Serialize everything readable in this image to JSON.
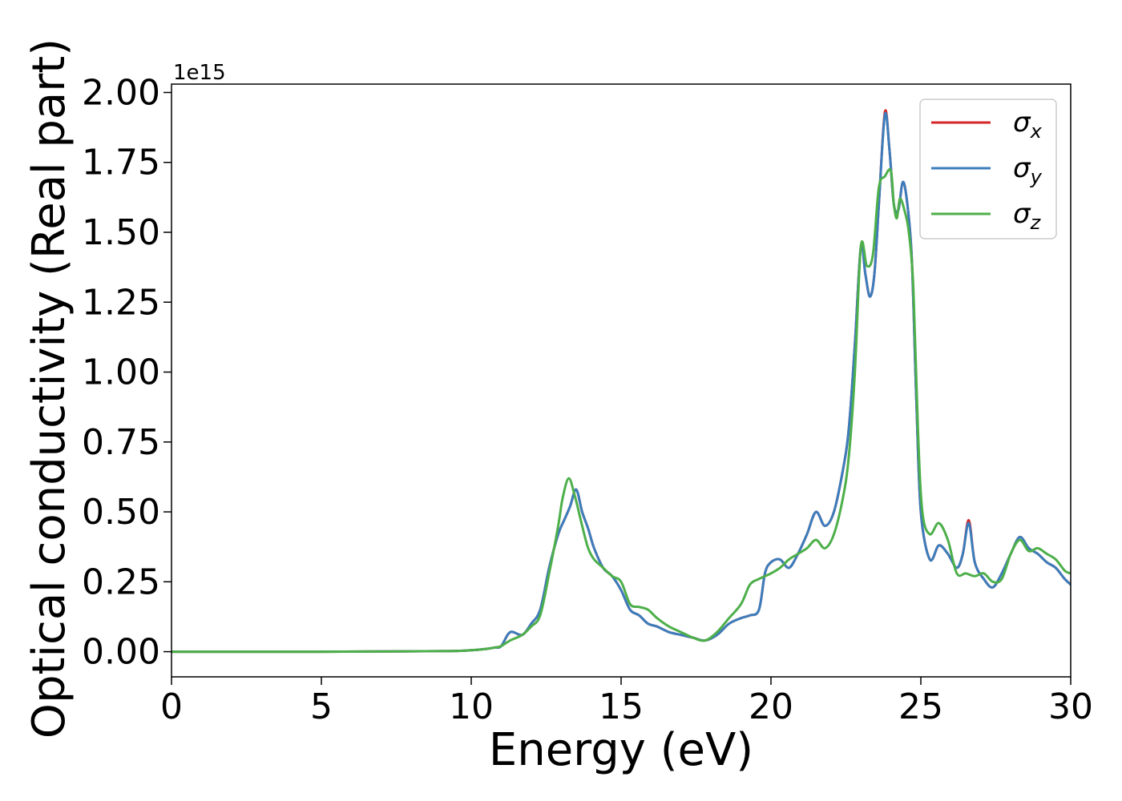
{
  "chart_data": {
    "type": "line",
    "xlabel": "Energy (eV)",
    "ylabel": "Optical conductivity (Real part)",
    "y_offset_label": "1e15",
    "xlim": [
      0,
      30
    ],
    "ylim": [
      -0.09,
      2.03
    ],
    "y_scale_factor": 1000000000000000.0,
    "grid": false,
    "legend_position": "top-right",
    "x_ticks": [
      "0",
      "5",
      "10",
      "15",
      "20",
      "25",
      "30"
    ],
    "y_ticks": [
      "0.00",
      "0.25",
      "0.50",
      "0.75",
      "1.00",
      "1.25",
      "1.50",
      "1.75",
      "2.00"
    ],
    "series": [
      {
        "name": "σx",
        "legend_symbol": "σ",
        "legend_sub": "x",
        "color": "#d62728",
        "x": [
          0,
          5,
          9,
          10,
          10.5,
          10.8,
          11,
          11.3,
          11.7,
          12,
          12.3,
          12.6,
          12.9,
          13.1,
          13.3,
          13.5,
          13.7,
          13.9,
          14.1,
          14.4,
          14.7,
          15,
          15.3,
          15.6,
          15.9,
          16.2,
          16.6,
          17,
          17.4,
          17.8,
          18.2,
          18.6,
          19,
          19.3,
          19.6,
          19.8,
          20,
          20.3,
          20.6,
          20.9,
          21.2,
          21.5,
          21.8,
          22.1,
          22.4,
          22.6,
          22.8,
          23,
          23.15,
          23.3,
          23.45,
          23.6,
          23.8,
          23.95,
          24.1,
          24.25,
          24.4,
          24.55,
          24.7,
          24.85,
          25,
          25.3,
          25.6,
          25.9,
          26.2,
          26.4,
          26.6,
          26.8,
          27.1,
          27.4,
          27.7,
          28,
          28.3,
          28.6,
          28.9,
          29.2,
          29.5,
          29.8,
          30
        ],
        "y": [
          0,
          0,
          0.002,
          0.005,
          0.01,
          0.015,
          0.02,
          0.07,
          0.06,
          0.1,
          0.15,
          0.3,
          0.42,
          0.47,
          0.52,
          0.58,
          0.5,
          0.44,
          0.37,
          0.3,
          0.27,
          0.22,
          0.15,
          0.13,
          0.1,
          0.09,
          0.07,
          0.06,
          0.05,
          0.04,
          0.06,
          0.1,
          0.12,
          0.13,
          0.15,
          0.28,
          0.32,
          0.33,
          0.3,
          0.35,
          0.42,
          0.5,
          0.45,
          0.5,
          0.65,
          0.8,
          1.1,
          1.45,
          1.35,
          1.27,
          1.35,
          1.6,
          1.93,
          1.8,
          1.6,
          1.58,
          1.68,
          1.6,
          1.4,
          0.9,
          0.5,
          0.33,
          0.38,
          0.35,
          0.3,
          0.35,
          0.47,
          0.32,
          0.26,
          0.23,
          0.28,
          0.35,
          0.41,
          0.37,
          0.35,
          0.32,
          0.3,
          0.26,
          0.24
        ]
      },
      {
        "name": "σy",
        "legend_symbol": "σ",
        "legend_sub": "y",
        "color": "#3b7dbc",
        "x": [
          0,
          5,
          9,
          10,
          10.5,
          10.8,
          11,
          11.3,
          11.7,
          12,
          12.3,
          12.6,
          12.9,
          13.1,
          13.3,
          13.5,
          13.7,
          13.9,
          14.1,
          14.4,
          14.7,
          15,
          15.3,
          15.6,
          15.9,
          16.2,
          16.6,
          17,
          17.4,
          17.8,
          18.2,
          18.6,
          19,
          19.3,
          19.6,
          19.8,
          20,
          20.3,
          20.6,
          20.9,
          21.2,
          21.5,
          21.8,
          22.1,
          22.4,
          22.6,
          22.8,
          23,
          23.15,
          23.3,
          23.45,
          23.6,
          23.8,
          23.95,
          24.1,
          24.25,
          24.4,
          24.55,
          24.7,
          24.85,
          25,
          25.3,
          25.6,
          25.9,
          26.2,
          26.4,
          26.6,
          26.8,
          27.1,
          27.4,
          27.7,
          28,
          28.3,
          28.6,
          28.9,
          29.2,
          29.5,
          29.8,
          30
        ],
        "y": [
          0,
          0,
          0.002,
          0.005,
          0.01,
          0.015,
          0.02,
          0.07,
          0.06,
          0.1,
          0.15,
          0.3,
          0.42,
          0.47,
          0.52,
          0.58,
          0.5,
          0.44,
          0.37,
          0.3,
          0.27,
          0.22,
          0.15,
          0.13,
          0.1,
          0.09,
          0.07,
          0.06,
          0.05,
          0.04,
          0.06,
          0.1,
          0.12,
          0.13,
          0.15,
          0.28,
          0.32,
          0.33,
          0.3,
          0.35,
          0.42,
          0.5,
          0.45,
          0.5,
          0.65,
          0.8,
          1.1,
          1.45,
          1.35,
          1.27,
          1.35,
          1.6,
          1.92,
          1.8,
          1.6,
          1.58,
          1.68,
          1.6,
          1.4,
          0.9,
          0.5,
          0.33,
          0.38,
          0.35,
          0.3,
          0.35,
          0.46,
          0.32,
          0.26,
          0.23,
          0.28,
          0.35,
          0.41,
          0.37,
          0.35,
          0.32,
          0.3,
          0.26,
          0.24
        ]
      },
      {
        "name": "σz",
        "legend_symbol": "σ",
        "legend_sub": "z",
        "color": "#4daf4a",
        "x": [
          0,
          5,
          9,
          10,
          10.5,
          10.8,
          11,
          11.3,
          11.7,
          12,
          12.3,
          12.6,
          12.9,
          13.05,
          13.25,
          13.45,
          13.7,
          13.9,
          14.1,
          14.4,
          14.7,
          15,
          15.3,
          15.6,
          15.9,
          16.2,
          16.6,
          17,
          17.4,
          17.8,
          18.2,
          18.6,
          19,
          19.3,
          19.6,
          19.8,
          20,
          20.3,
          20.6,
          20.9,
          21.2,
          21.5,
          21.8,
          22.1,
          22.4,
          22.6,
          22.8,
          23,
          23.2,
          23.4,
          23.6,
          23.8,
          24,
          24.1,
          24.2,
          24.3,
          24.45,
          24.6,
          24.75,
          24.9,
          25.05,
          25.3,
          25.6,
          25.9,
          26.2,
          26.5,
          26.8,
          27.1,
          27.4,
          27.7,
          28,
          28.3,
          28.6,
          28.9,
          29.2,
          29.5,
          29.8,
          30
        ],
        "y": [
          0,
          0,
          0.002,
          0.005,
          0.01,
          0.015,
          0.02,
          0.04,
          0.06,
          0.09,
          0.13,
          0.28,
          0.45,
          0.55,
          0.62,
          0.56,
          0.45,
          0.37,
          0.33,
          0.3,
          0.27,
          0.25,
          0.17,
          0.16,
          0.15,
          0.12,
          0.09,
          0.07,
          0.05,
          0.04,
          0.07,
          0.12,
          0.17,
          0.24,
          0.26,
          0.27,
          0.28,
          0.3,
          0.33,
          0.35,
          0.37,
          0.4,
          0.37,
          0.42,
          0.55,
          0.7,
          1.0,
          1.45,
          1.38,
          1.42,
          1.66,
          1.7,
          1.72,
          1.6,
          1.55,
          1.62,
          1.58,
          1.5,
          1.3,
          0.8,
          0.5,
          0.42,
          0.46,
          0.4,
          0.28,
          0.28,
          0.27,
          0.28,
          0.25,
          0.26,
          0.35,
          0.4,
          0.36,
          0.37,
          0.35,
          0.33,
          0.29,
          0.28
        ]
      }
    ]
  }
}
